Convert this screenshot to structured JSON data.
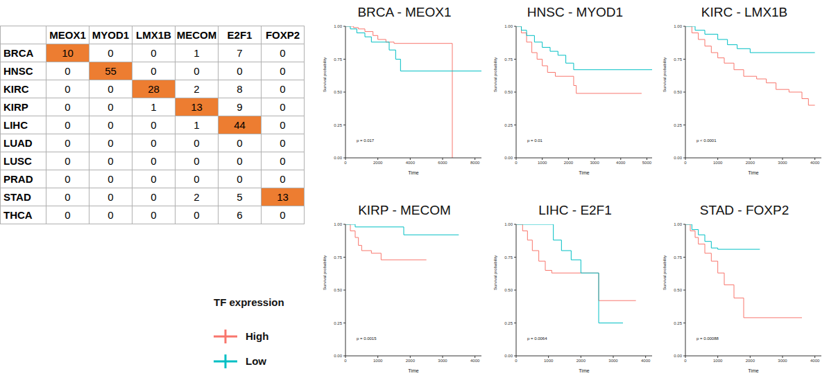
{
  "table": {
    "columns": [
      "MEOX1",
      "MYOD1",
      "LMX1B",
      "MECOM",
      "E2F1",
      "FOXP2"
    ],
    "rows": [
      {
        "name": "BRCA",
        "values": [
          10,
          0,
          0,
          1,
          7,
          0
        ]
      },
      {
        "name": "HNSC",
        "values": [
          0,
          55,
          0,
          0,
          0,
          0
        ]
      },
      {
        "name": "KIRC",
        "values": [
          0,
          0,
          28,
          2,
          8,
          0
        ]
      },
      {
        "name": "KIRP",
        "values": [
          0,
          0,
          1,
          13,
          9,
          0
        ]
      },
      {
        "name": "LIHC",
        "values": [
          0,
          0,
          0,
          1,
          44,
          0
        ]
      },
      {
        "name": "LUAD",
        "values": [
          0,
          0,
          0,
          0,
          0,
          0
        ]
      },
      {
        "name": "LUSC",
        "values": [
          0,
          0,
          0,
          0,
          0,
          0
        ]
      },
      {
        "name": "PRAD",
        "values": [
          0,
          0,
          0,
          0,
          0,
          0
        ]
      },
      {
        "name": "STAD",
        "values": [
          0,
          0,
          0,
          2,
          5,
          13
        ]
      },
      {
        "name": "THCA",
        "values": [
          0,
          0,
          0,
          0,
          6,
          0
        ]
      }
    ],
    "highlighted": [
      [
        "BRCA",
        "MEOX1"
      ],
      [
        "HNSC",
        "MYOD1"
      ],
      [
        "KIRC",
        "LMX1B"
      ],
      [
        "KIRP",
        "MECOM"
      ],
      [
        "LIHC",
        "E2F1"
      ],
      [
        "STAD",
        "FOXP2"
      ]
    ],
    "highlight_color": "#ED7D31"
  },
  "legend_title": "TF expression",
  "chart_data": [
    {
      "type": "line",
      "line_style": "step",
      "title": "BRCA - MEOX1",
      "x_label": "Time",
      "y_label": "Survival probability",
      "annotation": "p = 0.017",
      "xlim": [
        0,
        8400
      ],
      "xticks": [
        0,
        2000,
        4000,
        6000,
        8000
      ],
      "ylim": [
        0,
        1
      ],
      "yticks": [
        {
          "value": 0,
          "label": "0.00"
        },
        {
          "value": 0.25,
          "label": "0.25"
        },
        {
          "value": 0.5,
          "label": "0.50"
        },
        {
          "value": 0.75,
          "label": "0.75"
        },
        {
          "value": 1,
          "label": "1.00"
        }
      ],
      "series": [
        {
          "name": "High",
          "color": "#F8766D",
          "x": [
            0,
            500,
            800,
            1200,
            1700,
            2000,
            2500,
            3000,
            6600,
            6600
          ],
          "values": [
            1,
            0.99,
            0.98,
            0.96,
            0.93,
            0.9,
            0.88,
            0.87,
            0.87,
            0
          ]
        },
        {
          "name": "Low",
          "color": "#00BFC4",
          "x": [
            0,
            300,
            700,
            1200,
            1600,
            2700,
            3100,
            3400,
            8400
          ],
          "values": [
            1,
            0.98,
            0.95,
            0.92,
            0.88,
            0.82,
            0.75,
            0.66,
            0.66
          ]
        }
      ]
    },
    {
      "type": "line",
      "line_style": "step",
      "title": "HNSC - MYOD1",
      "x_label": "Time",
      "y_label": "Survival probability",
      "annotation": "p = 0.01",
      "xlim": [
        0,
        5200
      ],
      "xticks": [
        0,
        1000,
        2000,
        3000,
        4000,
        5000
      ],
      "ylim": [
        0,
        1
      ],
      "yticks": [
        {
          "value": 0,
          "label": "0.00"
        },
        {
          "value": 0.25,
          "label": "0.25"
        },
        {
          "value": 0.5,
          "label": "0.50"
        },
        {
          "value": 0.75,
          "label": "0.75"
        },
        {
          "value": 1,
          "label": "1.00"
        }
      ],
      "series": [
        {
          "name": "High",
          "color": "#F8766D",
          "x": [
            0,
            200,
            400,
            600,
            800,
            1000,
            1200,
            1500,
            2200,
            2300,
            4800
          ],
          "values": [
            1,
            0.95,
            0.88,
            0.8,
            0.75,
            0.7,
            0.65,
            0.62,
            0.55,
            0.49,
            0.49
          ]
        },
        {
          "name": "Low",
          "color": "#00BFC4",
          "x": [
            0,
            200,
            400,
            700,
            1000,
            1300,
            1600,
            1900,
            2200,
            5200
          ],
          "values": [
            1,
            0.97,
            0.93,
            0.88,
            0.84,
            0.81,
            0.78,
            0.72,
            0.67,
            0.67
          ]
        }
      ]
    },
    {
      "type": "line",
      "line_style": "step",
      "title": "KIRC - LMX1B",
      "x_label": "Time",
      "y_label": "Survival probability",
      "annotation": "p < 0.0001",
      "xlim": [
        0,
        4200
      ],
      "xticks": [
        0,
        1000,
        2000,
        3000,
        4000
      ],
      "ylim": [
        0,
        1
      ],
      "yticks": [
        {
          "value": 0,
          "label": "0.00"
        },
        {
          "value": 0.25,
          "label": "0.25"
        },
        {
          "value": 0.5,
          "label": "0.50"
        },
        {
          "value": 0.75,
          "label": "0.75"
        },
        {
          "value": 1,
          "label": "1.00"
        }
      ],
      "series": [
        {
          "name": "High",
          "color": "#F8766D",
          "x": [
            0,
            200,
            400,
            600,
            800,
            1000,
            1200,
            1500,
            1800,
            2200,
            2500,
            2800,
            3200,
            3600,
            3800,
            4000
          ],
          "values": [
            1,
            0.95,
            0.9,
            0.85,
            0.8,
            0.76,
            0.72,
            0.67,
            0.62,
            0.6,
            0.57,
            0.52,
            0.5,
            0.45,
            0.4,
            0.4
          ]
        },
        {
          "name": "Low",
          "color": "#00BFC4",
          "x": [
            0,
            300,
            600,
            1000,
            1300,
            1600,
            2000,
            4000
          ],
          "values": [
            1,
            0.97,
            0.94,
            0.9,
            0.86,
            0.83,
            0.8,
            0.8
          ]
        }
      ]
    },
    {
      "type": "line",
      "line_style": "step",
      "title": "KIRP - MECOM",
      "x_label": "Time",
      "y_label": "Survival probability",
      "annotation": "p = 0.0015",
      "xlim": [
        0,
        4200
      ],
      "xticks": [
        0,
        1000,
        2000,
        3000,
        4000
      ],
      "ylim": [
        0,
        1
      ],
      "yticks": [
        {
          "value": 0,
          "label": "0.00"
        },
        {
          "value": 0.25,
          "label": "0.25"
        },
        {
          "value": 0.5,
          "label": "0.50"
        },
        {
          "value": 0.75,
          "label": "0.75"
        },
        {
          "value": 1,
          "label": "1.00"
        }
      ],
      "series": [
        {
          "name": "High",
          "color": "#F8766D",
          "x": [
            0,
            150,
            300,
            400,
            500,
            800,
            1100,
            2500
          ],
          "values": [
            1,
            0.95,
            0.9,
            0.84,
            0.8,
            0.78,
            0.73,
            0.73
          ]
        },
        {
          "name": "Low",
          "color": "#00BFC4",
          "x": [
            0,
            300,
            1800,
            3500
          ],
          "values": [
            1,
            0.98,
            0.92,
            0.92
          ]
        }
      ]
    },
    {
      "type": "line",
      "line_style": "step",
      "title": "LIHC - E2F1",
      "x_label": "Time",
      "y_label": "Survival probability",
      "annotation": "p = 0.0064",
      "xlim": [
        0,
        4200
      ],
      "xticks": [
        0,
        1000,
        2000,
        3000,
        4000
      ],
      "ylim": [
        0,
        1
      ],
      "yticks": [
        {
          "value": 0,
          "label": "0.00"
        },
        {
          "value": 0.25,
          "label": "0.25"
        },
        {
          "value": 0.5,
          "label": "0.50"
        },
        {
          "value": 0.75,
          "label": "0.75"
        },
        {
          "value": 1,
          "label": "1.00"
        }
      ],
      "series": [
        {
          "name": "High",
          "color": "#F8766D",
          "x": [
            0,
            200,
            350,
            500,
            700,
            900,
            1100,
            2550,
            3700
          ],
          "values": [
            1,
            0.95,
            0.88,
            0.8,
            0.72,
            0.65,
            0.63,
            0.42,
            0.42
          ]
        },
        {
          "name": "Low",
          "color": "#00BFC4",
          "x": [
            0,
            1150,
            1400,
            1700,
            2000,
            2550,
            3300
          ],
          "values": [
            1,
            0.88,
            0.8,
            0.73,
            0.63,
            0.25,
            0.25
          ]
        }
      ]
    },
    {
      "type": "line",
      "line_style": "step",
      "title": "STAD - FOXP2",
      "x_label": "Time",
      "y_label": "Survival probability",
      "annotation": "p = 0.00088",
      "xlim": [
        0,
        4200
      ],
      "xticks": [
        0,
        1000,
        2000,
        3000,
        4000
      ],
      "ylim": [
        0,
        1
      ],
      "yticks": [
        {
          "value": 0,
          "label": "0.00"
        },
        {
          "value": 0.25,
          "label": "0.25"
        },
        {
          "value": 0.5,
          "label": "0.50"
        },
        {
          "value": 0.75,
          "label": "0.75"
        },
        {
          "value": 1,
          "label": "1.00"
        }
      ],
      "series": [
        {
          "name": "High",
          "color": "#F8766D",
          "x": [
            0,
            150,
            300,
            400,
            600,
            800,
            1000,
            1200,
            1500,
            1800,
            3600
          ],
          "values": [
            1,
            0.95,
            0.9,
            0.85,
            0.78,
            0.72,
            0.63,
            0.54,
            0.44,
            0.29,
            0.29
          ]
        },
        {
          "name": "Low",
          "color": "#00BFC4",
          "x": [
            0,
            200,
            400,
            600,
            800,
            1000,
            2300
          ],
          "values": [
            1,
            0.96,
            0.92,
            0.87,
            0.82,
            0.81,
            0.81
          ]
        }
      ]
    }
  ]
}
